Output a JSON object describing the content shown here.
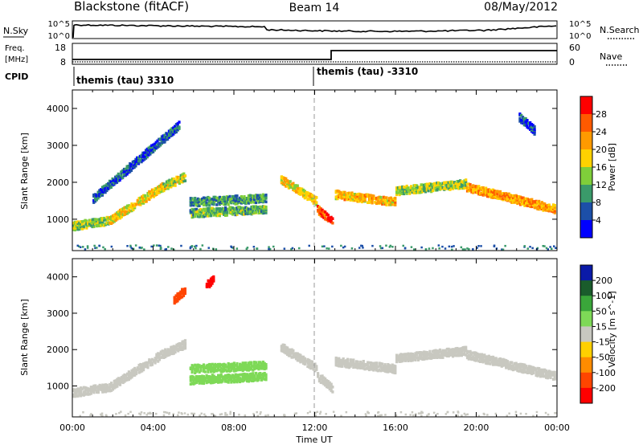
{
  "header": {
    "station": "Blackstone (fitACF)",
    "beam": "Beam 14",
    "date": "08/May/2012"
  },
  "noise_panel": {
    "left_label": "N.Sky",
    "right_label": "N.Search",
    "left_ticks": [
      "10^5",
      "10^0"
    ],
    "right_ticks": [
      "10^5",
      "10^0"
    ]
  },
  "freq_panel": {
    "left_label_1": "Freq.",
    "left_label_2": "[MHz]",
    "left_ticks": [
      "18",
      "8"
    ],
    "right_label": "Nave",
    "right_ticks": [
      "60",
      "0"
    ]
  },
  "cpid_panel": {
    "label": "CPID",
    "segments": [
      "themis (tau) 3310",
      "themis (tau) -3310"
    ]
  },
  "power_colorbar": {
    "title": "Power [dB]",
    "ticks": [
      "28",
      "24",
      "20",
      "16",
      "12",
      "8",
      "4"
    ],
    "colors": [
      "#ff0000",
      "#ff5a00",
      "#ff9a00",
      "#ffd200",
      "#7fce3a",
      "#3a9a6a",
      "#1c4fa8",
      "#0000ff"
    ]
  },
  "velocity_colorbar": {
    "title": "Velocity [m s^-1]",
    "ticks": [
      "200",
      "100",
      "50",
      "15",
      "-15",
      "-50",
      "-100",
      "-200"
    ],
    "colors": [
      "#0a1aa8",
      "#1a5c2c",
      "#3aa63a",
      "#7ed957",
      "#c8c8c0",
      "#ffd000",
      "#ff8c00",
      "#ff4500",
      "#ff0000"
    ]
  },
  "chart_data": [
    {
      "type": "heatmap",
      "name": "power",
      "xlabel": "Time UT",
      "ylabel": "Slant Range [km]",
      "xlim": [
        0,
        24
      ],
      "ylim": [
        150,
        4500
      ],
      "xticks": [
        "00:00",
        "04:00",
        "08:00",
        "12:00",
        "16:00",
        "20:00",
        "00:00"
      ],
      "yticks": [
        1000,
        2000,
        3000,
        4000
      ],
      "vmin": 0,
      "vmax": 32,
      "features": [
        {
          "t": [
            0.0,
            1.8
          ],
          "r": [
            850,
            1000
          ],
          "v": 14
        },
        {
          "t": [
            1.8,
            4.4
          ],
          "r": [
            1000,
            1900
          ],
          "v": 18
        },
        {
          "t": [
            4.4,
            5.6
          ],
          "r": [
            1900,
            2200
          ],
          "v": 16
        },
        {
          "t": [
            5.8,
            9.6
          ],
          "r": [
            1200,
            1300
          ],
          "v": 12
        },
        {
          "t": [
            5.8,
            9.6
          ],
          "r": [
            1500,
            1600
          ],
          "v": 10
        },
        {
          "t": [
            10.3,
            12.1
          ],
          "r": [
            2100,
            1500
          ],
          "v": 18
        },
        {
          "t": [
            12.1,
            12.9
          ],
          "r": [
            1300,
            950
          ],
          "v": 26
        },
        {
          "t": [
            13.0,
            16.0
          ],
          "r": [
            1700,
            1500
          ],
          "v": 20
        },
        {
          "t": [
            16.0,
            19.5
          ],
          "r": [
            1800,
            2000
          ],
          "v": 14
        },
        {
          "t": [
            19.5,
            23.9
          ],
          "r": [
            1900,
            1300
          ],
          "v": 22
        },
        {
          "t": [
            1.0,
            5.3
          ],
          "r": [
            1600,
            3600
          ],
          "v": 6
        },
        {
          "t": [
            22.1,
            22.9
          ],
          "r": [
            3800,
            3400
          ],
          "v": 6
        }
      ]
    },
    {
      "type": "heatmap",
      "name": "velocity",
      "xlabel": "Time UT",
      "ylabel": "Slant Range [km]",
      "xlim": [
        0,
        24
      ],
      "ylim": [
        150,
        4500
      ],
      "xticks": [
        "00:00",
        "04:00",
        "08:00",
        "12:00",
        "16:00",
        "20:00",
        "00:00"
      ],
      "yticks": [
        1000,
        2000,
        3000,
        4000
      ],
      "vmin": -250,
      "vmax": 250,
      "features": [
        {
          "t": [
            0.0,
            1.8
          ],
          "r": [
            850,
            1000
          ],
          "v": 0
        },
        {
          "t": [
            1.8,
            4.4
          ],
          "r": [
            1000,
            1900
          ],
          "v": 0
        },
        {
          "t": [
            4.4,
            5.6
          ],
          "r": [
            1900,
            2200
          ],
          "v": 0
        },
        {
          "t": [
            5.8,
            9.6
          ],
          "r": [
            1200,
            1300
          ],
          "v": 30
        },
        {
          "t": [
            5.8,
            9.6
          ],
          "r": [
            1500,
            1600
          ],
          "v": 30
        },
        {
          "t": [
            10.3,
            12.1
          ],
          "r": [
            2100,
            1500
          ],
          "v": 0
        },
        {
          "t": [
            12.1,
            12.9
          ],
          "r": [
            1300,
            950
          ],
          "v": 0
        },
        {
          "t": [
            13.0,
            16.0
          ],
          "r": [
            1700,
            1500
          ],
          "v": 0
        },
        {
          "t": [
            16.0,
            19.5
          ],
          "r": [
            1800,
            2000
          ],
          "v": 0
        },
        {
          "t": [
            19.5,
            23.9
          ],
          "r": [
            1900,
            1300
          ],
          "v": 0
        },
        {
          "t": [
            6.6,
            7.0
          ],
          "r": [
            3800,
            4000
          ],
          "v": -220
        },
        {
          "t": [
            5.0,
            5.6
          ],
          "r": [
            3400,
            3700
          ],
          "v": -180
        }
      ]
    }
  ]
}
